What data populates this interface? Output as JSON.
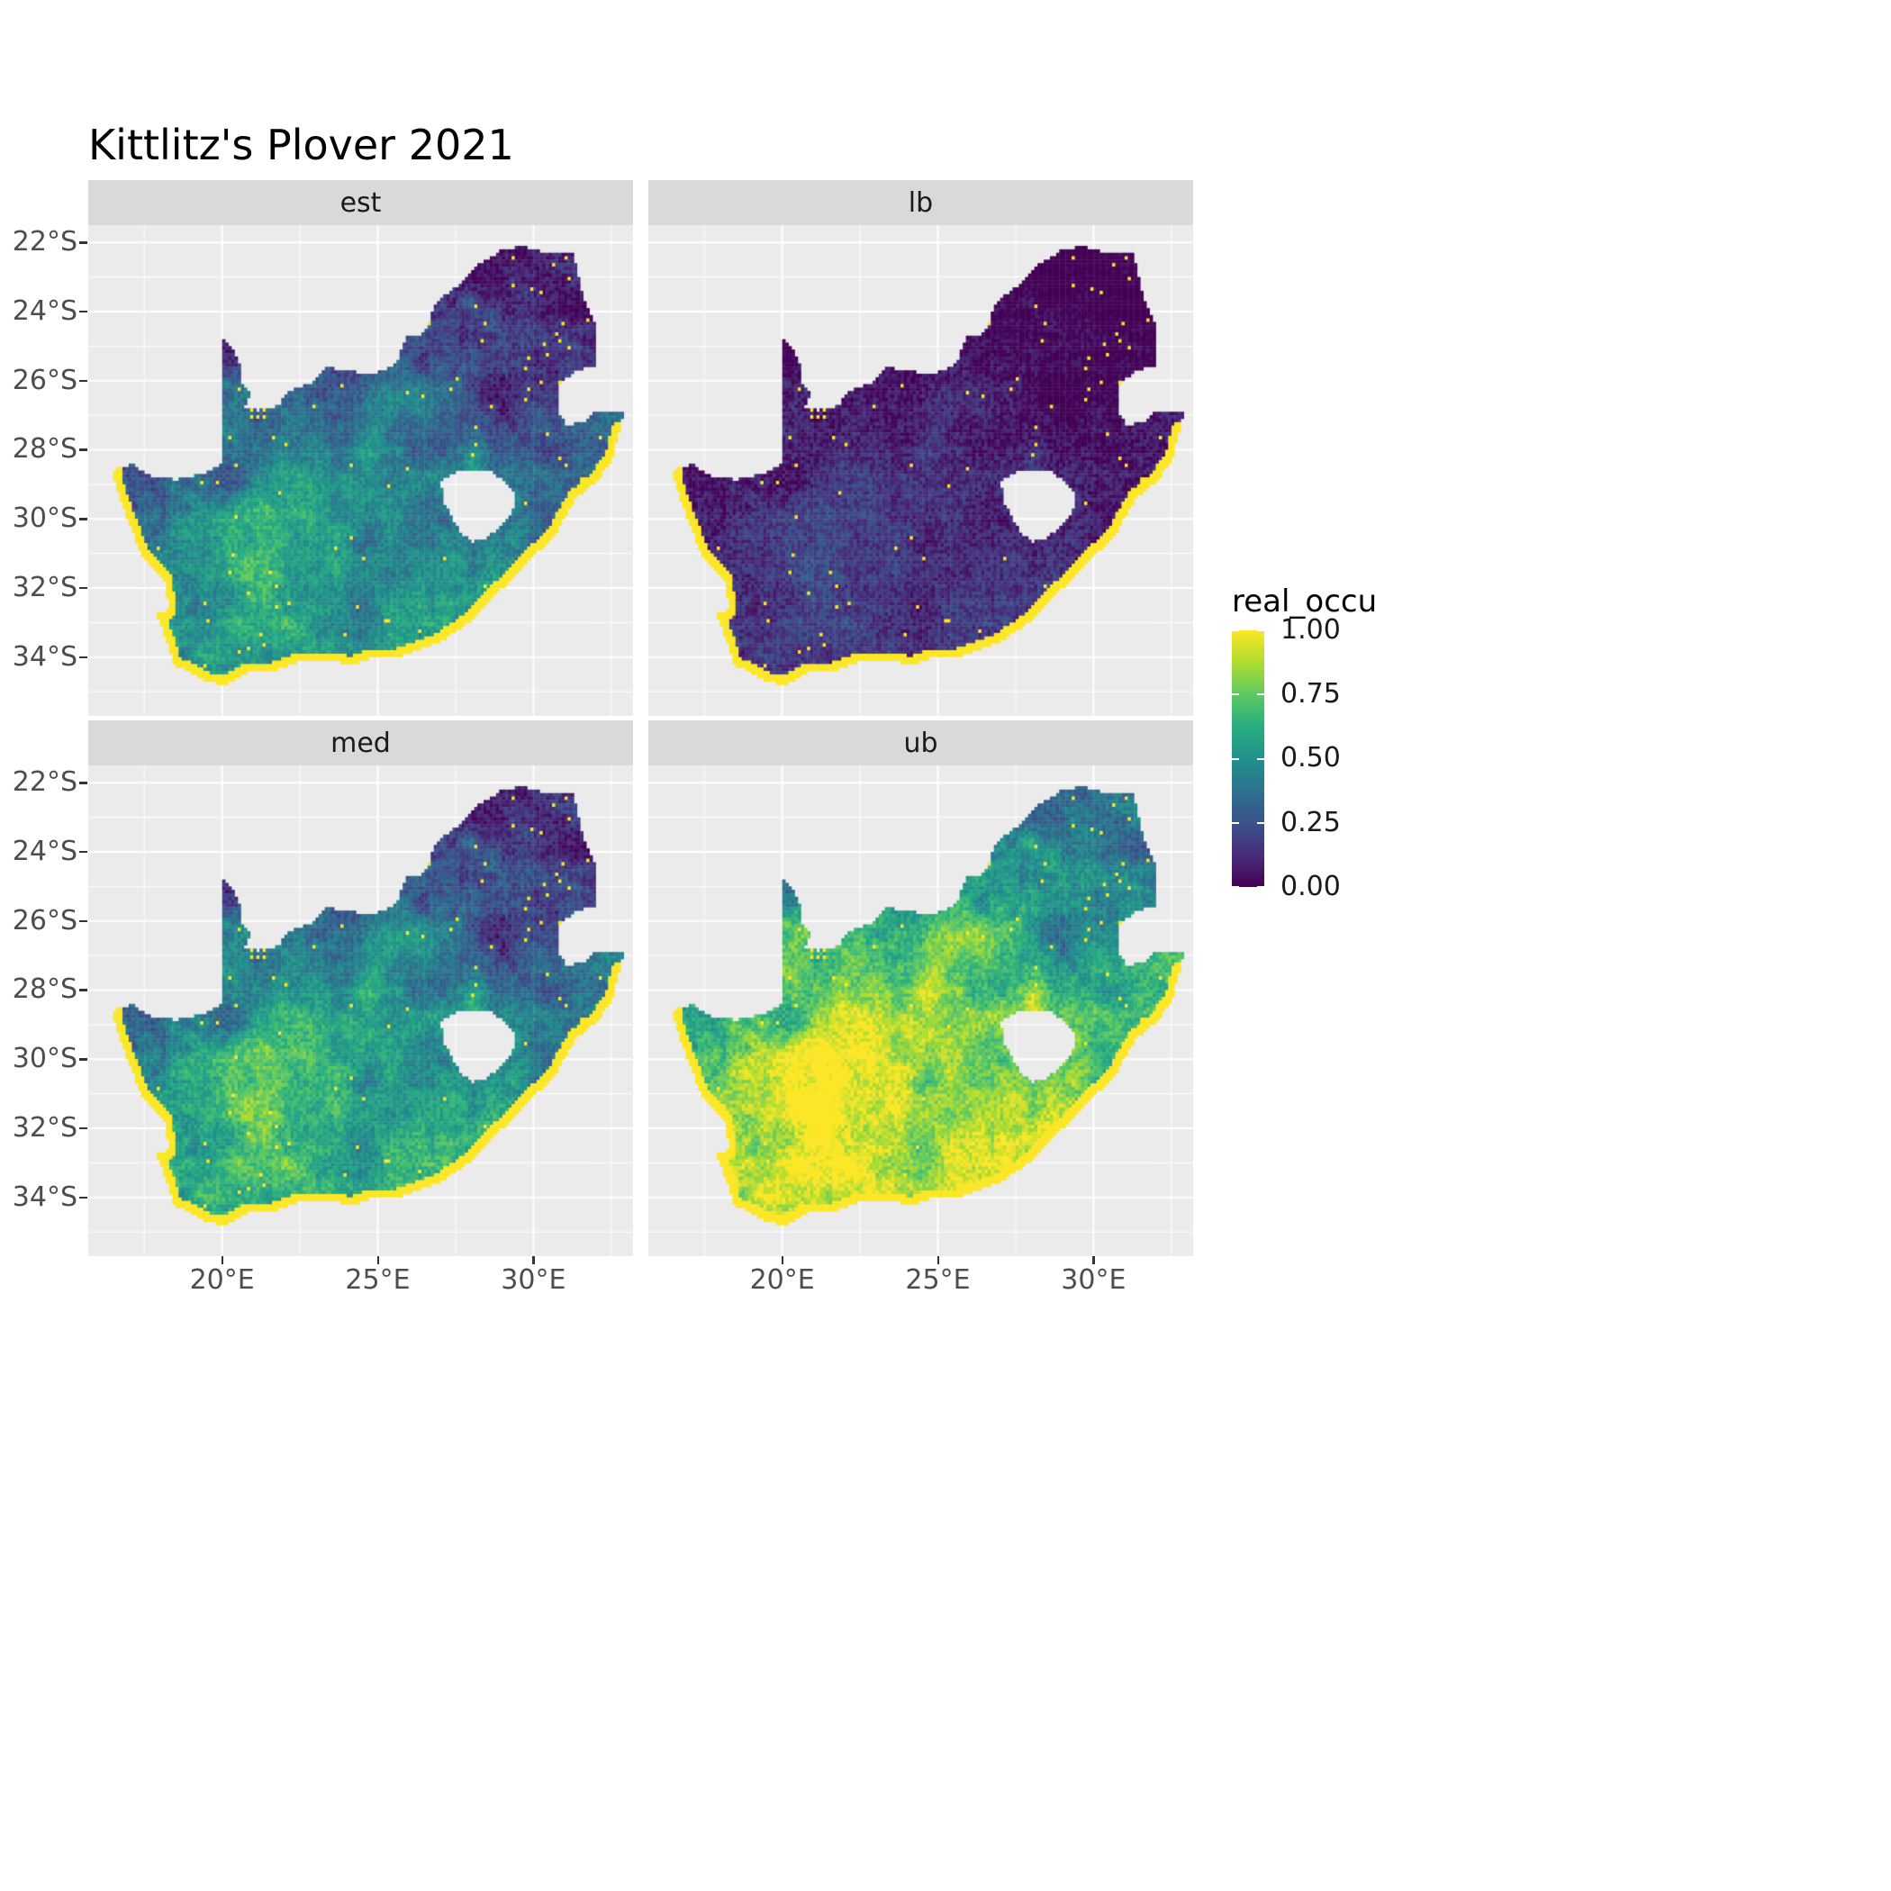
{
  "title": "Kittlitz's Plover 2021",
  "chart_data": {
    "type": "heatmap",
    "title": "Kittlitz's Plover 2021",
    "facets": [
      {
        "label": "est",
        "transform": [
          1.0,
          0.0
        ]
      },
      {
        "label": "lb",
        "transform": [
          0.45,
          -0.08
        ]
      },
      {
        "label": "med",
        "transform": [
          1.1,
          0.04
        ]
      },
      {
        "label": "ub",
        "transform": [
          1.2,
          0.28
        ]
      }
    ],
    "legend": {
      "title": "real_occu",
      "labels": [
        "1.00",
        "0.75",
        "0.50",
        "0.25",
        "0.00"
      ],
      "values": [
        1,
        0.75,
        0.5,
        0.25,
        0
      ]
    },
    "x_axis": {
      "ticks": [
        {
          "value": 20,
          "label": "20°E"
        },
        {
          "value": 25,
          "label": "25°E"
        },
        {
          "value": 30,
          "label": "30°E"
        }
      ],
      "minor": [
        17.5,
        22.5,
        27.5,
        32.5
      ]
    },
    "y_axis": {
      "ticks": [
        {
          "value": -22,
          "label": "22°S"
        },
        {
          "value": -24,
          "label": "24°S"
        },
        {
          "value": -26,
          "label": "26°S"
        },
        {
          "value": -28,
          "label": "28°S"
        },
        {
          "value": -30,
          "label": "30°S"
        },
        {
          "value": -32,
          "label": "32°S"
        },
        {
          "value": -34,
          "label": "34°S"
        }
      ],
      "minor": [
        -21,
        -23,
        -25,
        -27,
        -29,
        -31,
        -33,
        -35
      ]
    },
    "lon_range": [
      15.7,
      33.2
    ],
    "lat_range": [
      -21.5,
      -35.7
    ],
    "resolution_deg": 0.1,
    "value_range": [
      0,
      1
    ],
    "colors": {
      "panel_bg": "#EBEBEB",
      "strip_bg": "#D9D9D9",
      "grid": "#FFFFFF",
      "axis_text": "#4D4D4D",
      "title_text": "#000000",
      "strip_text": "#1A1A1A"
    },
    "viridis_stops": [
      "#440154",
      "#472D7B",
      "#3B528B",
      "#2C728E",
      "#21918C",
      "#28AE80",
      "#5EC962",
      "#ADDC30",
      "#FDE725"
    ],
    "south_africa_outline": [
      [
        16.45,
        -28.6
      ],
      [
        17.1,
        -28.42
      ],
      [
        17.7,
        -28.76
      ],
      [
        18.5,
        -28.86
      ],
      [
        19.3,
        -28.72
      ],
      [
        19.98,
        -28.42
      ],
      [
        19.98,
        -24.76
      ],
      [
        20.38,
        -25.12
      ],
      [
        20.6,
        -25.6
      ],
      [
        20.64,
        -26.1
      ],
      [
        20.92,
        -26.32
      ],
      [
        20.72,
        -26.78
      ],
      [
        21.15,
        -26.87
      ],
      [
        21.8,
        -26.72
      ],
      [
        22.15,
        -26.28
      ],
      [
        22.85,
        -26.08
      ],
      [
        23.35,
        -25.62
      ],
      [
        24.05,
        -25.72
      ],
      [
        24.78,
        -25.8
      ],
      [
        25.42,
        -25.62
      ],
      [
        25.62,
        -25.42
      ],
      [
        25.92,
        -24.75
      ],
      [
        26.48,
        -24.64
      ],
      [
        26.88,
        -23.75
      ],
      [
        27.62,
        -23.2
      ],
      [
        28.28,
        -22.62
      ],
      [
        29.05,
        -22.18
      ],
      [
        29.72,
        -22.12
      ],
      [
        30.32,
        -22.3
      ],
      [
        31.3,
        -22.35
      ],
      [
        31.6,
        -23.6
      ],
      [
        31.95,
        -24.3
      ],
      [
        32.02,
        -25.1
      ],
      [
        31.96,
        -25.56
      ],
      [
        31.32,
        -25.74
      ],
      [
        30.82,
        -26.1
      ],
      [
        30.78,
        -26.85
      ],
      [
        31.06,
        -27.3
      ],
      [
        31.62,
        -27.2
      ],
      [
        31.97,
        -26.92
      ],
      [
        32.16,
        -26.86
      ],
      [
        32.9,
        -26.86
      ],
      [
        32.56,
        -28.2
      ],
      [
        32.1,
        -28.86
      ],
      [
        31.36,
        -29.4
      ],
      [
        30.66,
        -30.5
      ],
      [
        29.92,
        -31.15
      ],
      [
        29.2,
        -31.85
      ],
      [
        28.6,
        -32.3
      ],
      [
        27.9,
        -33.02
      ],
      [
        27.05,
        -33.52
      ],
      [
        26.4,
        -33.76
      ],
      [
        25.65,
        -34.0
      ],
      [
        25.0,
        -33.96
      ],
      [
        24.2,
        -34.2
      ],
      [
        23.4,
        -34.1
      ],
      [
        22.6,
        -34.06
      ],
      [
        21.8,
        -34.36
      ],
      [
        20.9,
        -34.42
      ],
      [
        20.0,
        -34.82
      ],
      [
        19.35,
        -34.62
      ],
      [
        18.86,
        -34.36
      ],
      [
        18.46,
        -34.22
      ],
      [
        18.36,
        -33.92
      ],
      [
        18.06,
        -33.16
      ],
      [
        17.86,
        -32.76
      ],
      [
        18.3,
        -32.6
      ],
      [
        18.2,
        -31.9
      ],
      [
        17.4,
        -31.0
      ],
      [
        16.95,
        -30.0
      ],
      [
        16.7,
        -29.32
      ]
    ],
    "lesotho_hole": [
      [
        27.02,
        -28.92
      ],
      [
        27.42,
        -28.66
      ],
      [
        27.95,
        -28.6
      ],
      [
        28.62,
        -28.62
      ],
      [
        29.12,
        -28.92
      ],
      [
        29.46,
        -29.3
      ],
      [
        29.3,
        -29.88
      ],
      [
        28.94,
        -30.22
      ],
      [
        28.4,
        -30.62
      ],
      [
        28.04,
        -30.66
      ],
      [
        27.7,
        -30.42
      ],
      [
        27.36,
        -29.96
      ],
      [
        27.1,
        -29.46
      ]
    ]
  }
}
